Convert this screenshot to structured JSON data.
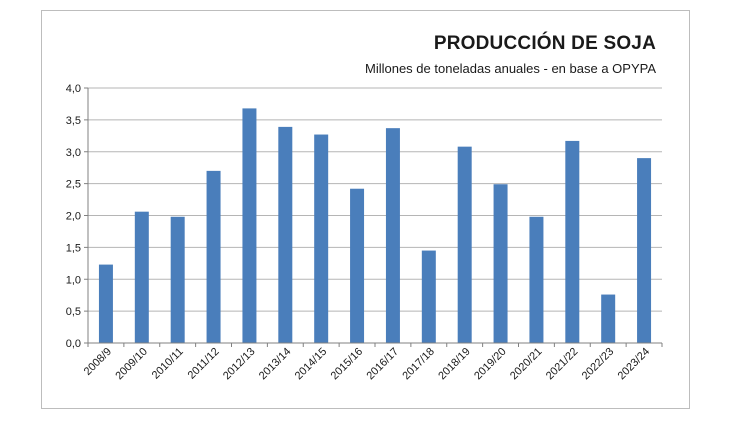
{
  "chart_data": {
    "type": "bar",
    "title": "PRODUCCIÓN DE SOJA",
    "subtitle": "Millones de toneladas anuales - en base a OPYPA",
    "xlabel": "",
    "ylabel": "",
    "categories": [
      "2008/9",
      "2009/10",
      "2010/11",
      "2011/12",
      "2012/13",
      "2013/14",
      "2014/15",
      "2015/16",
      "2016/17",
      "2017/18",
      "2018/19",
      "2019/20",
      "2020/21",
      "2021/22",
      "2022/23",
      "2023/24"
    ],
    "values": [
      1.23,
      2.06,
      1.98,
      2.7,
      3.68,
      3.39,
      3.27,
      2.42,
      3.37,
      1.45,
      3.08,
      2.49,
      1.98,
      3.17,
      0.76,
      2.9
    ],
    "ylim": [
      0,
      4.0
    ],
    "yticks": [
      "0,0",
      "0,5",
      "1,0",
      "1,5",
      "2,0",
      "2,5",
      "3,0",
      "3,5",
      "4,0"
    ],
    "grid": true,
    "bar_color": "#4a7ebb"
  }
}
